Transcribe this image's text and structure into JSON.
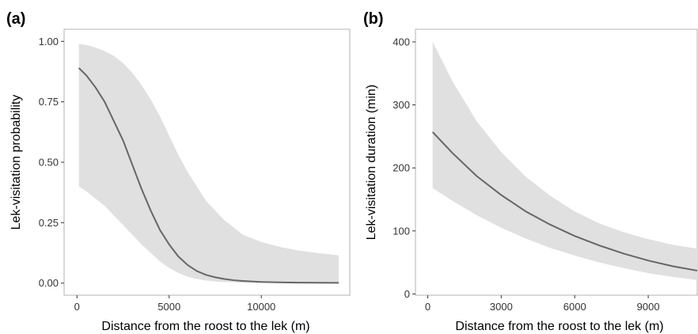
{
  "chart_data": [
    {
      "type": "line",
      "panel_label": "(a)",
      "xlabel": "Distance from the roost to the lek (m)",
      "ylabel": "Lek-visitation probability",
      "xlim": [
        -700,
        14800
      ],
      "ylim": [
        -0.05,
        1.05
      ],
      "x_ticks": [
        0,
        5000,
        10000
      ],
      "y_ticks": [
        0.0,
        0.25,
        0.5,
        0.75,
        1.0
      ],
      "x_tick_labels": [
        "0",
        "5000",
        "10000"
      ],
      "y_tick_labels": [
        "0.00",
        "0.25",
        "0.50",
        "0.75",
        "1.00"
      ],
      "grid": false,
      "colors": {
        "line": "#666666",
        "ribbon": "#e0e0e0",
        "frame": "#b3b3b3"
      },
      "series": [
        {
          "x": [
            100,
            500,
            1000,
            1500,
            2000,
            2500,
            3000,
            3500,
            4000,
            4500,
            5000,
            5500,
            6000,
            6500,
            7000,
            7500,
            8000,
            8500,
            9000,
            10000,
            11000,
            12000,
            13000,
            14200
          ],
          "y": [
            0.89,
            0.86,
            0.81,
            0.75,
            0.67,
            0.59,
            0.49,
            0.39,
            0.3,
            0.22,
            0.16,
            0.11,
            0.075,
            0.05,
            0.034,
            0.024,
            0.017,
            0.012,
            0.009,
            0.005,
            0.003,
            0.002,
            0.0015,
            0.001
          ],
          "lower": [
            0.4,
            0.38,
            0.35,
            0.32,
            0.28,
            0.24,
            0.2,
            0.16,
            0.125,
            0.09,
            0.063,
            0.042,
            0.027,
            0.017,
            0.011,
            0.007,
            0.005,
            0.003,
            0.002,
            0.001,
            0.0008,
            0.0005,
            0.0003,
            0.0002
          ],
          "upper": [
            0.99,
            0.985,
            0.975,
            0.96,
            0.94,
            0.91,
            0.87,
            0.82,
            0.76,
            0.69,
            0.61,
            0.53,
            0.46,
            0.4,
            0.34,
            0.3,
            0.26,
            0.23,
            0.2,
            0.17,
            0.15,
            0.135,
            0.125,
            0.115
          ]
        }
      ]
    },
    {
      "type": "line",
      "panel_label": "(b)",
      "xlabel": "Distance from the roost to the lek (m)",
      "ylabel": "Lek-visitation duration (min)",
      "xlim": [
        -500,
        11000
      ],
      "ylim": [
        -2,
        420
      ],
      "x_ticks": [
        0,
        3000,
        6000,
        9000
      ],
      "y_ticks": [
        0,
        100,
        200,
        300,
        400
      ],
      "x_tick_labels": [
        "0",
        "3000",
        "6000",
        "9000"
      ],
      "y_tick_labels": [
        "0",
        "100",
        "200",
        "300",
        "400"
      ],
      "grid": false,
      "colors": {
        "line": "#666666",
        "ribbon": "#e0e0e0",
        "frame": "#b3b3b3"
      },
      "series": [
        {
          "x": [
            200,
            1000,
            2000,
            3000,
            4000,
            5000,
            6000,
            7000,
            8000,
            9000,
            10000,
            11000
          ],
          "y": [
            257,
            224,
            187,
            157,
            131,
            110,
            92,
            77,
            64,
            53,
            44,
            37
          ],
          "lower": [
            168,
            148,
            125,
            105,
            88,
            73,
            61,
            50,
            41,
            33,
            27,
            22
          ],
          "upper": [
            400,
            338,
            274,
            225,
            186,
            156,
            131,
            112,
            98,
            87,
            78,
            72
          ]
        }
      ]
    }
  ]
}
